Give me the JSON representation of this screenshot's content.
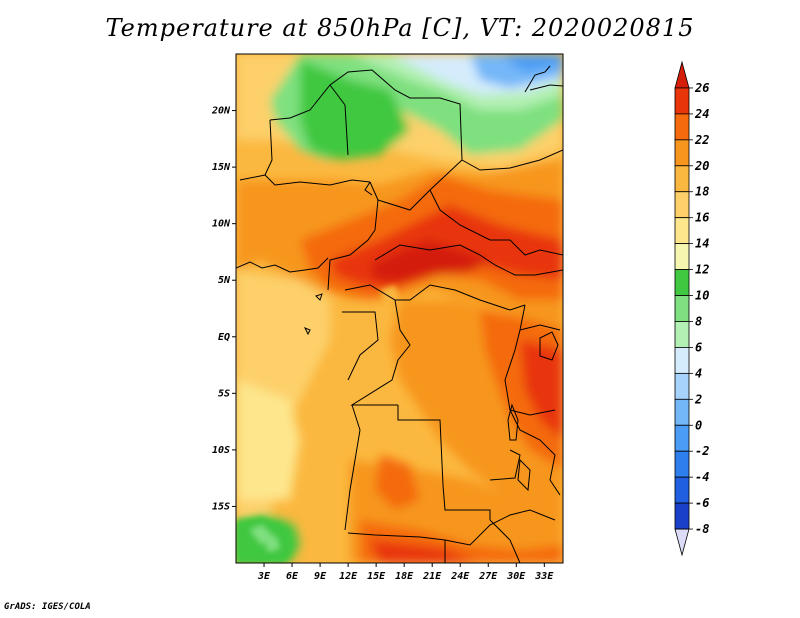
{
  "title": "Temperature at 850hPa [C], VT: 2020020815",
  "credit": "GrADS: IGES/COLA",
  "map": {
    "lon_range": [
      0,
      35
    ],
    "lat_range": [
      -20,
      25
    ],
    "lat_ticks": [
      {
        "v": 20,
        "label": "20N"
      },
      {
        "v": 15,
        "label": "15N"
      },
      {
        "v": 10,
        "label": "10N"
      },
      {
        "v": 5,
        "label": "5N"
      },
      {
        "v": 0,
        "label": "EQ"
      },
      {
        "v": -5,
        "label": "5S"
      },
      {
        "v": -10,
        "label": "10S"
      },
      {
        "v": -15,
        "label": "15S"
      }
    ],
    "lon_ticks": [
      {
        "v": 3,
        "label": "3E"
      },
      {
        "v": 6,
        "label": "6E"
      },
      {
        "v": 9,
        "label": "9E"
      },
      {
        "v": 12,
        "label": "12E"
      },
      {
        "v": 15,
        "label": "15E"
      },
      {
        "v": 18,
        "label": "18E"
      },
      {
        "v": 21,
        "label": "21E"
      },
      {
        "v": 24,
        "label": "24E"
      },
      {
        "v": 27,
        "label": "27E"
      },
      {
        "v": 30,
        "label": "30E"
      },
      {
        "v": 33,
        "label": "33E"
      }
    ]
  },
  "colorbar": {
    "levels": [
      "-8",
      "-6",
      "-4",
      "-2",
      "0",
      "2",
      "4",
      "6",
      "8",
      "10",
      "12",
      "14",
      "16",
      "18",
      "20",
      "22",
      "24",
      "26"
    ],
    "colors": [
      "#0b0b85",
      "#1a3fc8",
      "#1f5fe0",
      "#2e7fee",
      "#4a9cf5",
      "#74b7f8",
      "#a6d2fb",
      "#d4ecfc",
      "#b3f0b3",
      "#7fe07f",
      "#40c840",
      "#f5f7b0",
      "#fde68c",
      "#fdd06a",
      "#fbb840",
      "#f7961e",
      "#f46a0c",
      "#e8360a",
      "#d41e0a"
    ]
  }
}
